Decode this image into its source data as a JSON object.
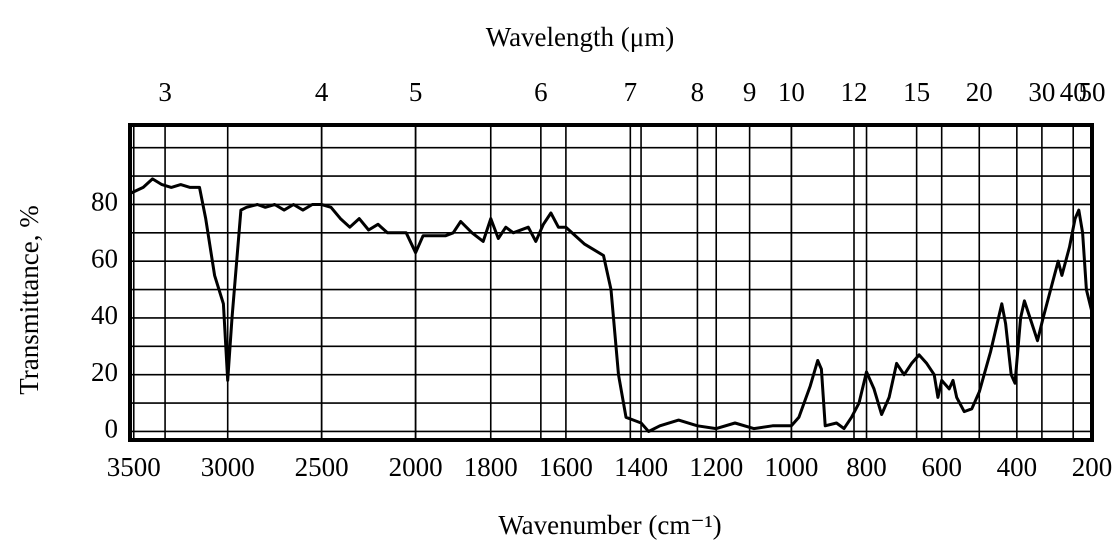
{
  "chart_data": {
    "type": "line",
    "title": "Wavelength (μm)",
    "x_label": "Wavenumber (cm⁻¹)",
    "y_label": "Transmittance, %",
    "xlim": [
      3520,
      200
    ],
    "x_scale_break": 2000,
    "x_scale_ratio": 2,
    "xticks": [
      3500,
      3000,
      2500,
      2000,
      1800,
      1600,
      1400,
      1200,
      1000,
      800,
      600,
      400,
      200
    ],
    "x2ticks": [
      3,
      4,
      5,
      6,
      7,
      8,
      9,
      10,
      12,
      15,
      20,
      30,
      40,
      50
    ],
    "ylim": [
      -3,
      108
    ],
    "yticks": [
      0,
      20,
      40,
      60,
      80
    ],
    "ygrid": [
      0,
      10,
      20,
      30,
      40,
      50,
      60,
      70,
      80,
      90,
      100
    ],
    "grid": true,
    "series": [
      {
        "color": "#000000",
        "x": [
          3515,
          3450,
          3400,
          3350,
          3300,
          3250,
          3200,
          3150,
          3117,
          3070,
          3023,
          3000,
          2977,
          2930,
          2900,
          2842,
          2800,
          2750,
          2700,
          2650,
          2600,
          2550,
          2500,
          2450,
          2400,
          2350,
          2300,
          2250,
          2200,
          2150,
          2100,
          2050,
          2000,
          1980,
          1950,
          1920,
          1900,
          1880,
          1850,
          1820,
          1800,
          1780,
          1760,
          1740,
          1700,
          1680,
          1660,
          1640,
          1620,
          1600,
          1550,
          1500,
          1480,
          1460,
          1440,
          1420,
          1400,
          1380,
          1350,
          1300,
          1250,
          1200,
          1150,
          1100,
          1050,
          1000,
          980,
          950,
          930,
          920,
          910,
          880,
          860,
          840,
          820,
          800,
          780,
          760,
          740,
          720,
          700,
          680,
          660,
          640,
          620,
          610,
          600,
          580,
          570,
          560,
          540,
          520,
          500,
          470,
          440,
          430,
          415,
          405,
          390,
          380,
          360,
          345,
          330,
          300,
          290,
          280,
          260,
          245,
          235,
          225,
          215,
          200
        ],
        "values": [
          84,
          86,
          89,
          87,
          86,
          87,
          86,
          86,
          75,
          55,
          45,
          18,
          40,
          78,
          79,
          80,
          79,
          80,
          78,
          80,
          78,
          80,
          80,
          79,
          75,
          72,
          75,
          71,
          73,
          70,
          70,
          70,
          63,
          69,
          69,
          69,
          70,
          74,
          70,
          67,
          75,
          68,
          72,
          70,
          72,
          67,
          73,
          77,
          72,
          72,
          66,
          62,
          50,
          20,
          5,
          4,
          3,
          0,
          2,
          4,
          2,
          1,
          3,
          1,
          2,
          2,
          5,
          16,
          25,
          22,
          2,
          3,
          1,
          5,
          10,
          21,
          15,
          6,
          12,
          24,
          20,
          24,
          27,
          24,
          20,
          12,
          18,
          15,
          18,
          12,
          7,
          8,
          14,
          28,
          45,
          38,
          20,
          17,
          40,
          46,
          38,
          32,
          40,
          55,
          60,
          55,
          65,
          75,
          78,
          70,
          50,
          42
        ]
      }
    ]
  }
}
